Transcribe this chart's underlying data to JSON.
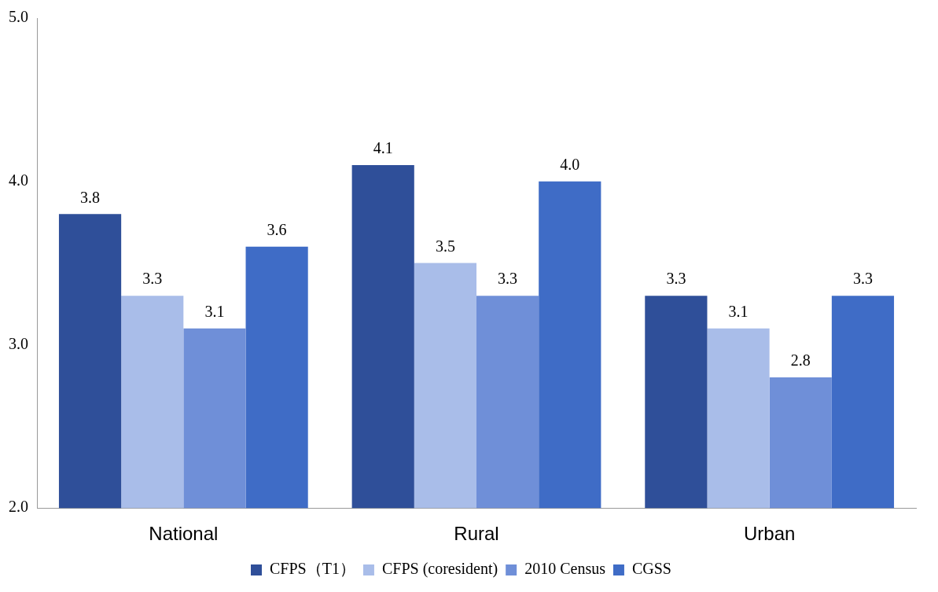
{
  "chart_data": {
    "type": "bar",
    "categories": [
      "National",
      "Rural",
      "Urban"
    ],
    "series": [
      {
        "name": "CFPS（T1）",
        "color": "#2f4f99",
        "values": [
          3.8,
          4.1,
          3.3
        ],
        "value_labels": [
          "3.8",
          "4.1",
          "3.3"
        ]
      },
      {
        "name": "CFPS (coresident)",
        "color": "#a9bde9",
        "values": [
          3.3,
          3.5,
          3.1
        ],
        "value_labels": [
          "3.3",
          "3.5",
          "3.1"
        ]
      },
      {
        "name": "2010 Census",
        "color": "#6f8fd8",
        "values": [
          3.1,
          3.3,
          2.8
        ],
        "value_labels": [
          "3.1",
          "3.3",
          "2.8"
        ]
      },
      {
        "name": "CGSS",
        "color": "#3f6cc6",
        "values": [
          3.6,
          4.0,
          3.3
        ],
        "value_labels": [
          "3.6",
          "4.0",
          "3.3"
        ]
      }
    ],
    "ylim": [
      2,
      5
    ],
    "yticks": [
      {
        "value": 2,
        "label": "2.0"
      },
      {
        "value": 3,
        "label": "3.0"
      },
      {
        "value": 4,
        "label": "4.0"
      },
      {
        "value": 5,
        "label": "5.0"
      }
    ],
    "grid": false,
    "legend": "bottom"
  }
}
